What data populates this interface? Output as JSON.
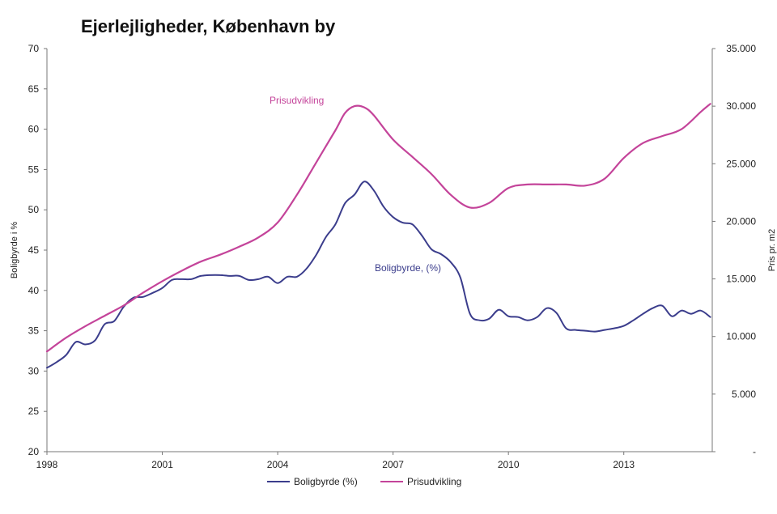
{
  "chart_data": {
    "type": "line",
    "title": "Ejerlejligheder, København by",
    "xlabel": "",
    "ylabel": "Boligbyrde i %",
    "y2label": "Pris pr. m2",
    "xlim": [
      1998,
      2015.3
    ],
    "ylim": [
      20,
      70
    ],
    "y2lim": [
      0,
      35000
    ],
    "x_ticks": [
      1998,
      2001,
      2004,
      2007,
      2010,
      2013
    ],
    "x_tick_labels": [
      "1998",
      "2001",
      "2004",
      "2007",
      "2010",
      "2013"
    ],
    "y_ticks": [
      20,
      25,
      30,
      35,
      40,
      45,
      50,
      55,
      60,
      65,
      70
    ],
    "y_tick_labels": [
      "20",
      "25",
      "30",
      "35",
      "40",
      "45",
      "50",
      "55",
      "60",
      "65",
      "70"
    ],
    "y2_ticks": [
      0,
      5000,
      10000,
      15000,
      20000,
      25000,
      30000,
      35000
    ],
    "y2_tick_labels": [
      "-",
      "5.000",
      "10.000",
      "15.000",
      "20.000",
      "25.000",
      "30.000",
      "35.000"
    ],
    "grid": false,
    "legend_position": "bottom",
    "series": [
      {
        "name": "Boligbyrde (%)",
        "axis": "left",
        "color": "#3b3d8c",
        "annotation": "Boligbyrde, (%)",
        "x": [
          1998.0,
          1998.25,
          1998.5,
          1998.75,
          1999.0,
          1999.25,
          1999.5,
          1999.75,
          2000.0,
          2000.25,
          2000.5,
          2000.75,
          2001.0,
          2001.25,
          2001.5,
          2001.75,
          2002.0,
          2002.25,
          2002.5,
          2002.75,
          2003.0,
          2003.25,
          2003.5,
          2003.75,
          2004.0,
          2004.25,
          2004.5,
          2004.75,
          2005.0,
          2005.25,
          2005.5,
          2005.75,
          2006.0,
          2006.25,
          2006.5,
          2006.75,
          2007.0,
          2007.25,
          2007.5,
          2007.75,
          2008.0,
          2008.25,
          2008.5,
          2008.75,
          2009.0,
          2009.25,
          2009.5,
          2009.75,
          2010.0,
          2010.25,
          2010.5,
          2010.75,
          2011.0,
          2011.25,
          2011.5,
          2011.75,
          2012.0,
          2012.25,
          2012.5,
          2012.75,
          2013.0,
          2013.25,
          2013.5,
          2013.75,
          2014.0,
          2014.25,
          2014.5,
          2014.75,
          2015.0,
          2015.25
        ],
        "values": [
          30.4,
          31.1,
          32.0,
          33.6,
          33.3,
          33.8,
          35.8,
          36.2,
          38.0,
          39.1,
          39.2,
          39.7,
          40.3,
          41.3,
          41.4,
          41.4,
          41.8,
          41.9,
          41.9,
          41.8,
          41.8,
          41.3,
          41.4,
          41.7,
          40.9,
          41.7,
          41.7,
          42.7,
          44.4,
          46.6,
          48.2,
          50.8,
          51.9,
          53.5,
          52.4,
          50.4,
          49.1,
          48.4,
          48.2,
          46.8,
          45.1,
          44.5,
          43.5,
          41.6,
          37.1,
          36.3,
          36.5,
          37.6,
          36.8,
          36.7,
          36.3,
          36.7,
          37.8,
          37.2,
          35.3,
          35.1,
          35.0,
          34.9,
          35.1,
          35.3,
          35.6,
          36.3,
          37.1,
          37.8,
          38.1,
          36.8,
          37.5,
          37.1,
          37.5,
          36.7
        ]
      },
      {
        "name": "Prisudvikling",
        "axis": "right",
        "color": "#c4449a",
        "annotation": "Prisudvikling",
        "x": [
          1998.0,
          1998.5,
          1999.0,
          1999.5,
          2000.0,
          2000.5,
          2001.0,
          2001.5,
          2002.0,
          2002.5,
          2003.0,
          2003.5,
          2004.0,
          2004.5,
          2005.0,
          2005.5,
          2005.75,
          2006.0,
          2006.25,
          2006.5,
          2007.0,
          2007.5,
          2008.0,
          2008.5,
          2009.0,
          2009.5,
          2010.0,
          2010.5,
          2011.0,
          2011.5,
          2012.0,
          2012.5,
          2013.0,
          2013.5,
          2014.0,
          2014.5,
          2015.0,
          2015.25
        ],
        "values": [
          8700,
          9900,
          10900,
          11800,
          12700,
          13800,
          14800,
          15700,
          16500,
          17100,
          17800,
          18600,
          19900,
          22300,
          25100,
          27900,
          29400,
          30000,
          29900,
          29200,
          27100,
          25600,
          24100,
          22300,
          21200,
          21600,
          22900,
          23200,
          23200,
          23200,
          23100,
          23700,
          25500,
          26800,
          27400,
          28000,
          29500,
          30200
        ]
      }
    ]
  }
}
